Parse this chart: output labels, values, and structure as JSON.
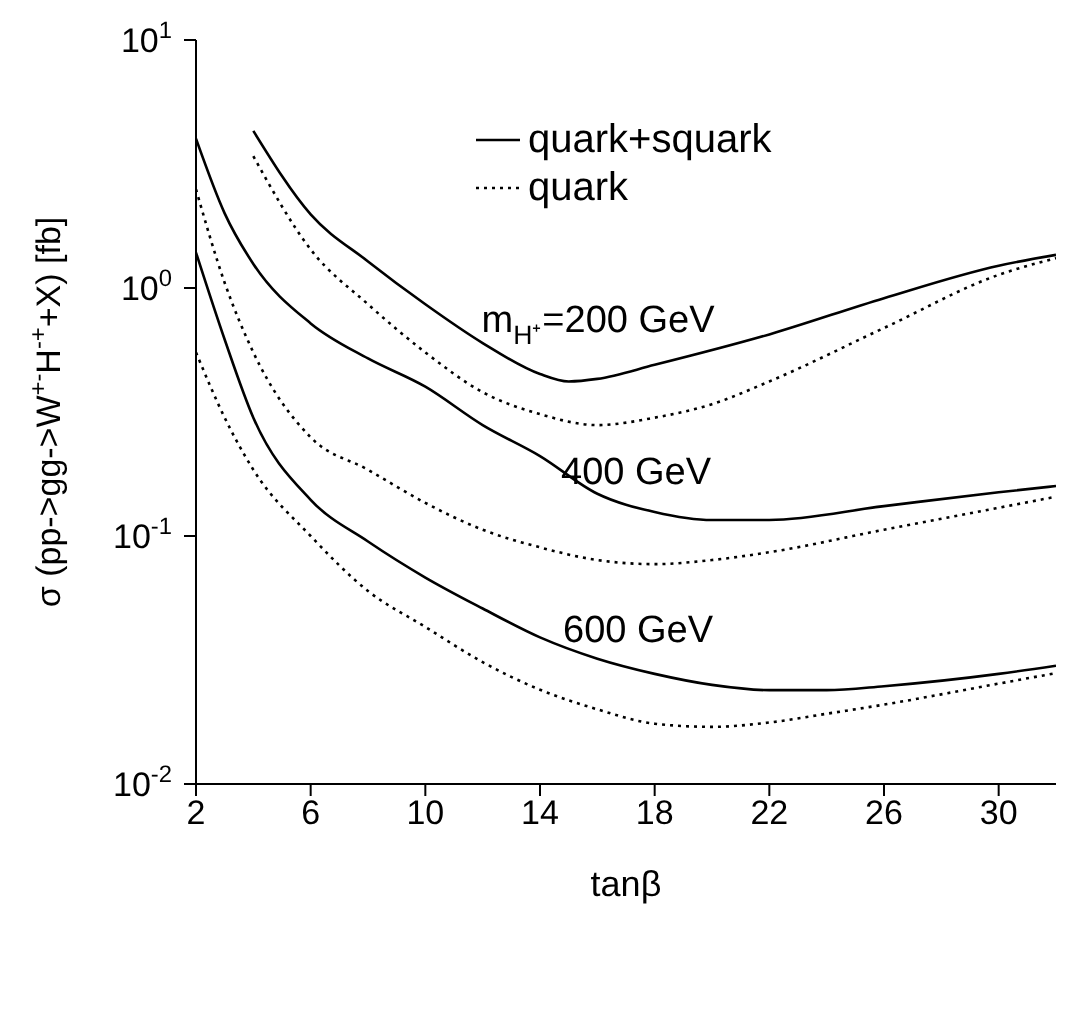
{
  "chart_data": {
    "type": "line",
    "xlabel": "tanβ",
    "ylabel": "σ (pp->gg->W$^{+-}$H$^{-+}$+X) [fb]",
    "log": "y",
    "xlim": [
      2,
      32
    ],
    "xticks": [
      2,
      6,
      10,
      14,
      18,
      22,
      26,
      30
    ],
    "ylim": [
      0.01,
      10
    ],
    "yticks": [
      {
        "value": 0.01,
        "label": "10$^{-2}$"
      },
      {
        "value": 0.1,
        "label": "10$^{-1}$"
      },
      {
        "value": 1,
        "label": "10$^{0}$"
      },
      {
        "value": 10,
        "label": "10$^{1}$"
      }
    ],
    "grid": false,
    "legend": "top",
    "marker": "none",
    "series": [
      {
        "name": "quark+squark",
        "color": "#000000",
        "line_style": "solid",
        "x": [
          4,
          6,
          8,
          10,
          12,
          14,
          15,
          16,
          18,
          22,
          26,
          30,
          32
        ],
        "values": [
          4.3,
          1.98,
          1.28,
          0.86,
          0.6,
          0.45,
          0.42,
          0.43,
          0.49,
          0.65,
          0.91,
          1.23,
          1.36
        ]
      },
      {
        "name": "quark",
        "color": "#000000",
        "line_style": "dotted",
        "x": [
          4,
          6,
          8,
          10,
          12,
          14,
          16,
          18,
          20,
          22,
          26,
          30,
          32
        ],
        "values": [
          3.4,
          1.43,
          0.86,
          0.55,
          0.38,
          0.31,
          0.28,
          0.3,
          0.34,
          0.42,
          0.69,
          1.13,
          1.32
        ]
      },
      {
        "color": "#000000",
        "line_style": "solid",
        "x": [
          2,
          3,
          4,
          6,
          8,
          10,
          12,
          14,
          16,
          18,
          20,
          22,
          26,
          30,
          32
        ],
        "values": [
          4.0,
          2.0,
          1.25,
          0.72,
          0.52,
          0.4,
          0.28,
          0.21,
          0.148,
          0.125,
          0.116,
          0.116,
          0.132,
          0.15,
          0.159
        ]
      },
      {
        "color": "#000000",
        "line_style": "dotted",
        "x": [
          2,
          3,
          4,
          6,
          8,
          10,
          12,
          14,
          16,
          18,
          20,
          22,
          26,
          30,
          32
        ],
        "values": [
          2.5,
          1.05,
          0.55,
          0.25,
          0.185,
          0.136,
          0.106,
          0.09,
          0.08,
          0.077,
          0.08,
          0.086,
          0.106,
          0.13,
          0.144
        ]
      },
      {
        "color": "#000000",
        "line_style": "solid",
        "x": [
          2,
          3,
          4,
          6,
          8,
          10,
          12,
          14,
          16,
          18,
          20,
          22,
          24,
          26,
          30,
          32
        ],
        "values": [
          1.39,
          0.62,
          0.3,
          0.14,
          0.095,
          0.068,
          0.051,
          0.039,
          0.032,
          0.0278,
          0.0251,
          0.0239,
          0.0239,
          0.0248,
          0.0278,
          0.03
        ]
      },
      {
        "color": "#000000",
        "line_style": "dotted",
        "x": [
          2,
          3,
          4,
          6,
          8,
          10,
          12,
          14,
          16,
          18,
          20,
          22,
          24,
          26,
          30,
          32
        ],
        "values": [
          0.55,
          0.3,
          0.185,
          0.1,
          0.06,
          0.043,
          0.031,
          0.024,
          0.02,
          0.0175,
          0.017,
          0.0177,
          0.0192,
          0.0209,
          0.0254,
          0.028
        ]
      }
    ],
    "annotations": [
      "m$_{H⁺}$=200 GeV",
      "400 GeV",
      "600 GeV"
    ]
  }
}
